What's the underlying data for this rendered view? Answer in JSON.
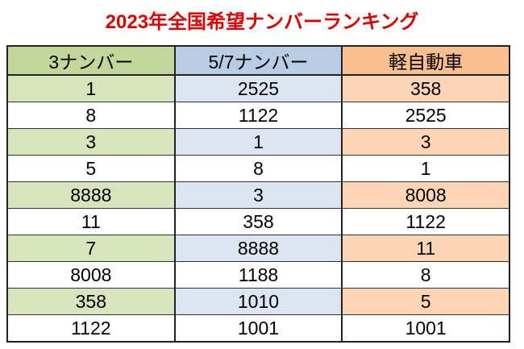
{
  "title": "2023年全国希望ナンバーランキング",
  "table": {
    "header": [
      "3ナンバー",
      "5/7ナンバー",
      "軽自動車"
    ],
    "rows": [
      [
        "1",
        "2525",
        "358"
      ],
      [
        "8",
        "1122",
        "2525"
      ],
      [
        "3",
        "1",
        "3"
      ],
      [
        "5",
        "8",
        "1"
      ],
      [
        "8888",
        "3",
        "8008"
      ],
      [
        "11",
        "358",
        "1122"
      ],
      [
        "7",
        "8888",
        "11"
      ],
      [
        "8008",
        "1188",
        "8"
      ],
      [
        "358",
        "1010",
        "5"
      ],
      [
        "1122",
        "1001",
        "1001"
      ]
    ]
  }
}
